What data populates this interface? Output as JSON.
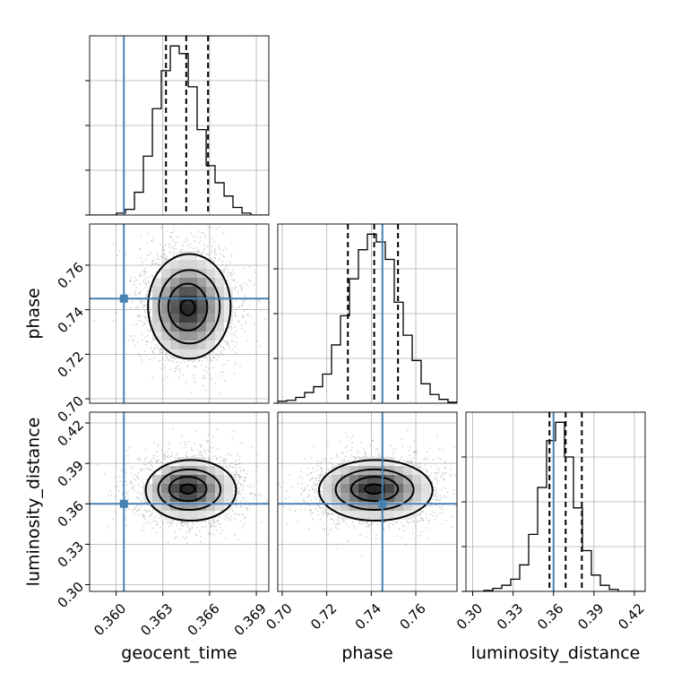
{
  "chart_data": {
    "type": "corner",
    "parameters": [
      "geocent_time",
      "phase",
      "luminosity_distance"
    ],
    "truths": {
      "geocent_time": 0.3605,
      "phase": 0.745,
      "luminosity_distance": 0.36
    },
    "ranges": {
      "geocent_time": [
        0.3583,
        0.3698
      ],
      "phase": [
        0.698,
        0.7785
      ],
      "luminosity_distance": [
        0.295,
        0.428
      ]
    },
    "ticks": {
      "geocent_time": [
        0.36,
        0.363,
        0.366,
        0.369
      ],
      "phase": [
        0.7,
        0.72,
        0.74,
        0.76
      ],
      "luminosity_distance": [
        0.3,
        0.33,
        0.36,
        0.39,
        0.42
      ]
    },
    "tick_labels": {
      "geocent_time": [
        "0.360",
        "0.363",
        "0.366",
        "0.369"
      ],
      "phase": [
        "0.70",
        "0.72",
        "0.74",
        "0.76"
      ],
      "luminosity_distance": [
        "0.30",
        "0.33",
        "0.36",
        "0.39",
        "0.42"
      ]
    },
    "quantiles": {
      "geocent_time": [
        0.3632,
        0.3645,
        0.3659
      ],
      "phase": [
        0.7295,
        0.7413,
        0.752
      ],
      "luminosity_distance": [
        0.357,
        0.369,
        0.381
      ]
    },
    "histograms": {
      "geocent_time": {
        "edges": [
          0.3583,
          0.35888,
          0.35945,
          0.36003,
          0.3606,
          0.36118,
          0.36175,
          0.36233,
          0.3629,
          0.36348,
          0.36405,
          0.36463,
          0.3652,
          0.36578,
          0.36635,
          0.36693,
          0.3675,
          0.36808,
          0.36865,
          0.36923,
          0.3698
        ],
        "counts": [
          0,
          0,
          0,
          2,
          6,
          24,
          62,
          112,
          152,
          178,
          170,
          135,
          90,
          52,
          34,
          20,
          8,
          2,
          0,
          0
        ]
      },
      "phase": {
        "edges": [
          0.698,
          0.70203,
          0.70605,
          0.71008,
          0.7141,
          0.71813,
          0.72215,
          0.72618,
          0.7302,
          0.73423,
          0.73825,
          0.74228,
          0.7463,
          0.75033,
          0.75435,
          0.75838,
          0.7624,
          0.76643,
          0.77045,
          0.77448,
          0.7785
        ],
        "counts": [
          2,
          3,
          6,
          11,
          17,
          30,
          60,
          90,
          128,
          158,
          174,
          166,
          148,
          104,
          70,
          44,
          20,
          9,
          4,
          1
        ]
      },
      "luminosity_distance": {
        "edges": [
          0.295,
          0.30165,
          0.3083,
          0.31495,
          0.3216,
          0.32825,
          0.3349,
          0.34155,
          0.3482,
          0.35485,
          0.3615,
          0.36815,
          0.3748,
          0.38145,
          0.3881,
          0.39475,
          0.4014,
          0.40805,
          0.4147,
          0.42135,
          0.428
        ],
        "counts": [
          0,
          0,
          1,
          3,
          6,
          12,
          26,
          56,
          102,
          148,
          166,
          132,
          82,
          40,
          16,
          6,
          2,
          0,
          0,
          0
        ]
      }
    },
    "pairs": [
      {
        "x": "geocent_time",
        "y": "phase",
        "peak": [
          0.3646,
          0.741
        ],
        "contours": [
          {
            "cx": 0.3647,
            "cy": 0.7415,
            "rx": 0.00265,
            "ry": 0.0235
          },
          {
            "cx": 0.3647,
            "cy": 0.7413,
            "rx": 0.00195,
            "ry": 0.0165
          },
          {
            "cx": 0.3646,
            "cy": 0.7412,
            "rx": 0.00125,
            "ry": 0.0105
          },
          {
            "cx": 0.3646,
            "cy": 0.741,
            "rx": 0.00045,
            "ry": 0.0035
          }
        ]
      },
      {
        "x": "geocent_time",
        "y": "luminosity_distance",
        "peak": [
          0.3646,
          0.371
        ],
        "contours": [
          {
            "cx": 0.3648,
            "cy": 0.37,
            "rx": 0.0029,
            "ry": 0.0225
          },
          {
            "cx": 0.3647,
            "cy": 0.3705,
            "rx": 0.002,
            "ry": 0.015
          },
          {
            "cx": 0.3646,
            "cy": 0.371,
            "rx": 0.0012,
            "ry": 0.009
          },
          {
            "cx": 0.3646,
            "cy": 0.371,
            "rx": 0.00045,
            "ry": 0.0035
          }
        ]
      },
      {
        "x": "phase",
        "y": "luminosity_distance",
        "peak": [
          0.7415,
          0.371
        ],
        "contours": [
          {
            "cx": 0.742,
            "cy": 0.37,
            "rx": 0.0255,
            "ry": 0.0225
          },
          {
            "cx": 0.7415,
            "cy": 0.3705,
            "rx": 0.0175,
            "ry": 0.015
          },
          {
            "cx": 0.7415,
            "cy": 0.371,
            "rx": 0.0105,
            "ry": 0.009
          },
          {
            "cx": 0.7412,
            "cy": 0.371,
            "rx": 0.004,
            "ry": 0.0035
          }
        ]
      }
    ],
    "colors": {
      "truth": "#4682b4",
      "histogram": "#000000",
      "quantile": "#000000",
      "grid": "#b0b0b0",
      "scatter": "#888888"
    },
    "grid": true
  }
}
